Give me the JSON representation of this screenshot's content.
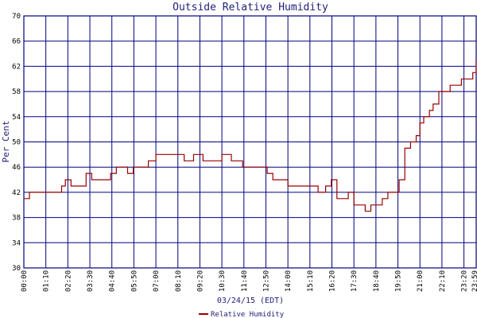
{
  "chart_data": {
    "type": "line",
    "title": "Outside Relative Humidity",
    "xlabel": "03/24/15 (EDT)",
    "ylabel": "Per Cent",
    "ylim": [
      30,
      70
    ],
    "y_ticks": [
      "30",
      "34",
      "38",
      "42",
      "46",
      "50",
      "54",
      "58",
      "62",
      "66",
      "70"
    ],
    "x_ticks": [
      "00:00",
      "01:10",
      "02:20",
      "03:30",
      "04:40",
      "05:50",
      "07:00",
      "08:10",
      "09:20",
      "10:30",
      "11:40",
      "12:50",
      "14:00",
      "15:10",
      "16:20",
      "17:30",
      "18:40",
      "19:50",
      "21:00",
      "22:10",
      "23:20"
    ],
    "x_tick_hours": [
      0,
      1.1667,
      2.3333,
      3.5,
      4.6667,
      5.8333,
      7,
      8.1667,
      9.3333,
      10.5,
      11.6667,
      12.8333,
      14,
      15.1667,
      16.3333,
      17.5,
      18.6667,
      19.8333,
      21,
      22.1667,
      23.3333
    ],
    "end_label": "23:59",
    "xlim_hours": [
      0,
      23.983
    ],
    "grid": true,
    "legend_position": "bottom-center",
    "series": [
      {
        "name": "Relative Humidity",
        "color": "#990000",
        "x_hours": [
          0,
          0.3,
          0.6,
          1.0,
          1.5,
          2.0,
          2.2,
          2.5,
          3.0,
          3.3,
          3.6,
          4.0,
          4.3,
          4.6,
          4.9,
          5.2,
          5.5,
          5.8,
          6.2,
          6.6,
          7.0,
          7.5,
          8.0,
          8.5,
          9.0,
          9.5,
          10.0,
          10.5,
          11.0,
          11.3,
          11.6,
          12.0,
          12.3,
          12.6,
          12.9,
          13.2,
          13.6,
          14.0,
          14.3,
          14.6,
          15.0,
          15.3,
          15.6,
          16.0,
          16.3,
          16.6,
          16.9,
          17.2,
          17.5,
          17.8,
          18.1,
          18.4,
          18.7,
          19.0,
          19.3,
          19.6,
          19.9,
          20.2,
          20.5,
          20.8,
          21.0,
          21.2,
          21.5,
          21.7,
          22.0,
          22.3,
          22.6,
          22.9,
          23.2,
          23.5,
          23.8,
          23.98
        ],
        "values": [
          41,
          42,
          42,
          42,
          42,
          43,
          44,
          43,
          43,
          45,
          44,
          44,
          44,
          45,
          46,
          46,
          45,
          46,
          46,
          47,
          48,
          48,
          48,
          47,
          48,
          47,
          47,
          48,
          47,
          47,
          46,
          46,
          46,
          46,
          45,
          44,
          44,
          43,
          43,
          43,
          43,
          43,
          42,
          43,
          44,
          41,
          41,
          42,
          40,
          40,
          39,
          40,
          40,
          41,
          42,
          42,
          44,
          49,
          50,
          51,
          53,
          54,
          55,
          56,
          58,
          58,
          59,
          59,
          60,
          60,
          61,
          63
        ]
      }
    ]
  }
}
